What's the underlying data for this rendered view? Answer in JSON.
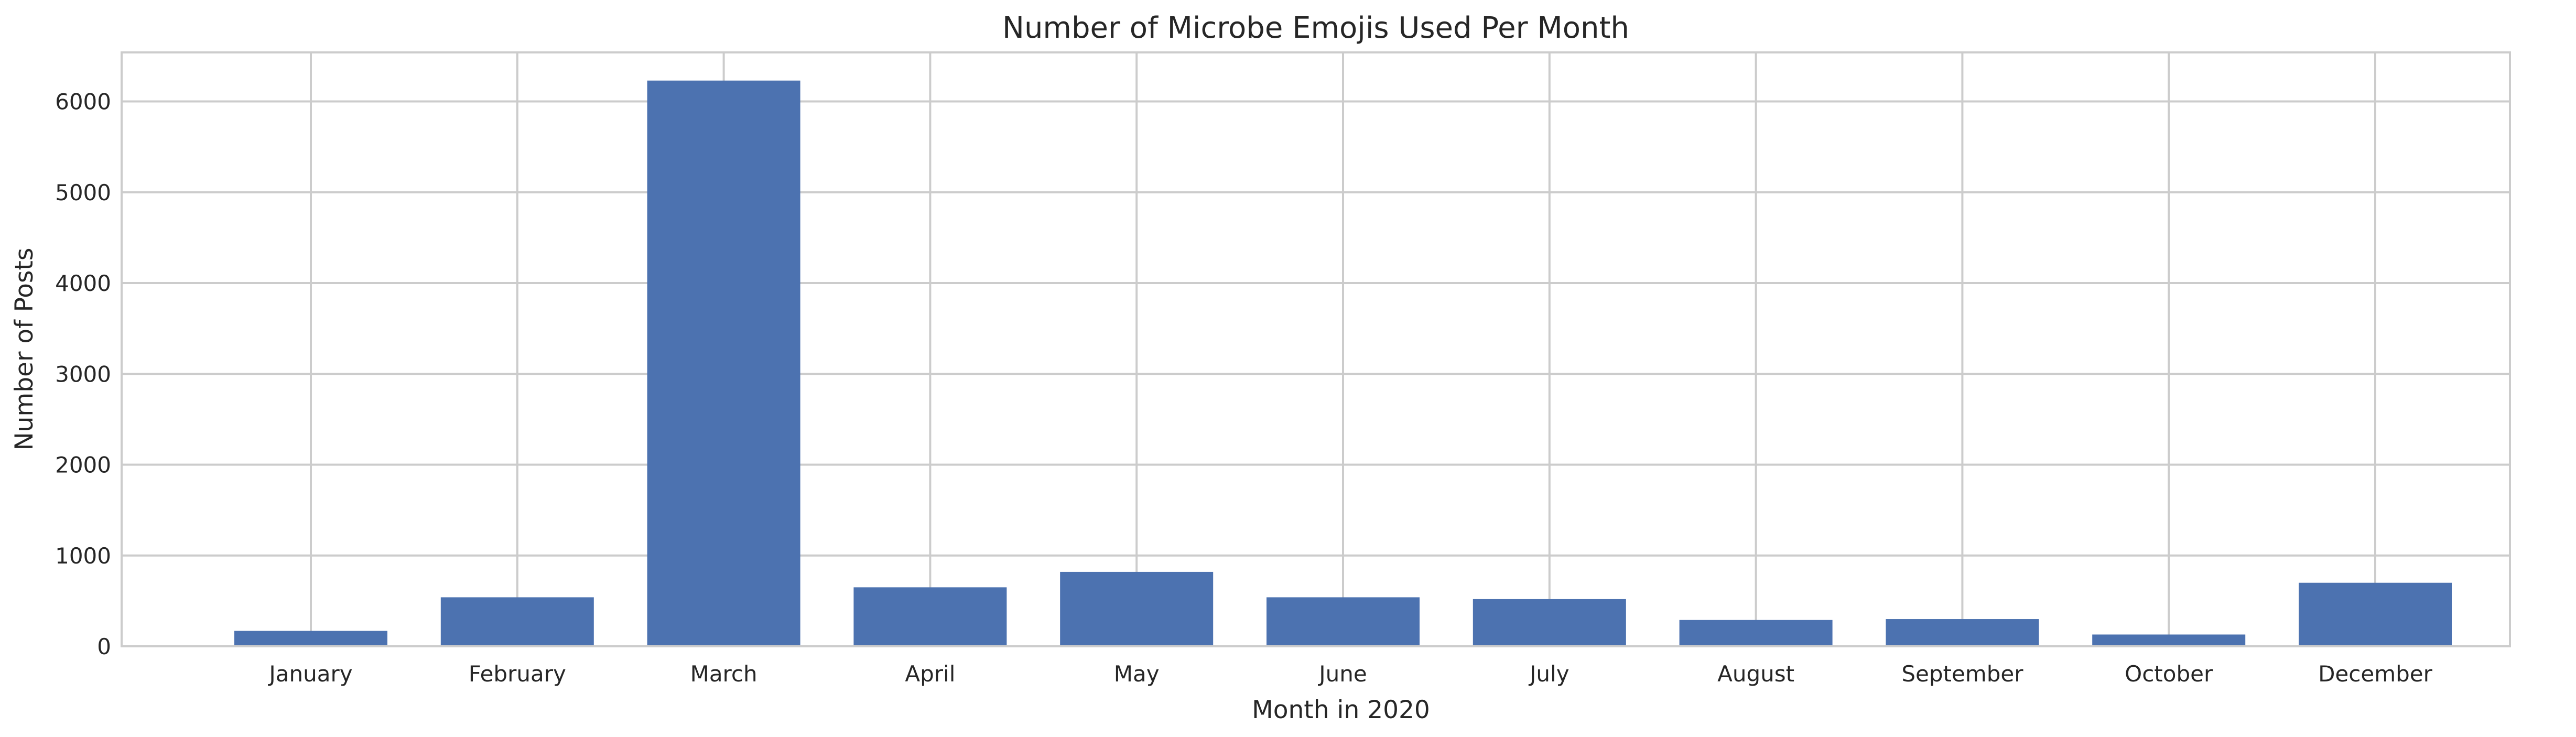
{
  "chart_data": {
    "type": "bar",
    "title": "Number of Microbe Emojis Used Per Month",
    "xlabel": "Month in 2020",
    "ylabel": "Number of Posts",
    "categories": [
      "January",
      "February",
      "March",
      "April",
      "May",
      "June",
      "July",
      "August",
      "September",
      "October",
      "December"
    ],
    "values": [
      170,
      540,
      6230,
      650,
      820,
      540,
      520,
      290,
      300,
      130,
      700
    ],
    "ylim": [
      0,
      6540
    ],
    "yticks": [
      0,
      1000,
      2000,
      3000,
      4000,
      5000,
      6000
    ],
    "grid": true,
    "bar_color": "#4c72b0",
    "grid_color": "#cccccc"
  }
}
